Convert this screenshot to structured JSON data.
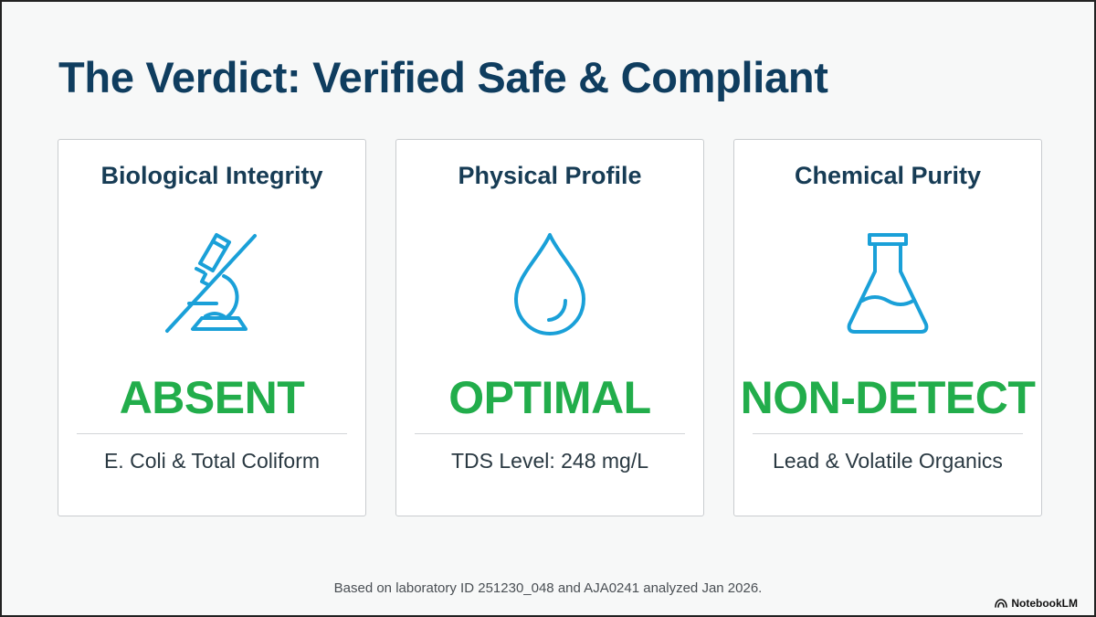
{
  "slide": {
    "title": "The Verdict: Verified Safe & Compliant",
    "cards": [
      {
        "heading": "Biological Integrity",
        "icon": "microscope-crossed-icon",
        "status": "ABSENT",
        "detail": "E. Coli & Total Coliform"
      },
      {
        "heading": "Physical Profile",
        "icon": "water-drop-icon",
        "status": "OPTIMAL",
        "detail": "TDS Level: 248 mg/L"
      },
      {
        "heading": "Chemical Purity",
        "icon": "flask-icon",
        "status": "NON-DETECT",
        "detail": "Lead & Volatile Organics"
      }
    ],
    "footnote": "Based on laboratory ID 251230_048 and AJA0241 analyzed Jan 2026.",
    "brand": "NotebookLM"
  },
  "colors": {
    "title": "#0f3d5f",
    "icon": "#1aa0d8",
    "status": "#22ad4b",
    "card_border": "#c9cccf",
    "background": "#f7f8f8"
  }
}
